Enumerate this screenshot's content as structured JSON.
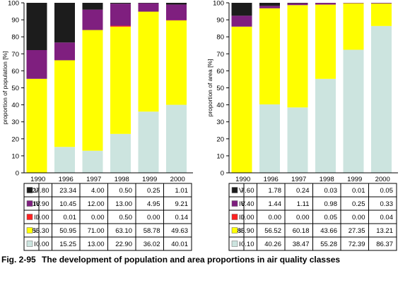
{
  "caption": {
    "number": "Fig. 2-95",
    "text": "The development of population and area proportions in air quality classes"
  },
  "colors": {
    "V": "#1c1c1c",
    "IV": "#7f1f7f",
    "III": "#ff2020",
    "II": "#ffff00",
    "I": "#cce4df"
  },
  "chart_data": [
    {
      "type": "bar",
      "stacked": true,
      "ylabel": "proportion of population [%]",
      "ylim": [
        0,
        100
      ],
      "yticks": [
        0,
        10,
        20,
        30,
        40,
        50,
        60,
        70,
        80,
        90,
        100
      ],
      "categories": [
        "1990",
        "1996",
        "1997",
        "1998",
        "1999",
        "2000"
      ],
      "series": [
        {
          "name": "V",
          "values": [
            27.8,
            23.34,
            4.0,
            0.5,
            0.25,
            1.01
          ],
          "labels": [
            "27.80",
            "23.34",
            "4.00",
            "0.50",
            "0.25",
            "1.01"
          ]
        },
        {
          "name": "IV",
          "values": [
            16.9,
            10.45,
            12.0,
            13.0,
            4.95,
            9.21
          ],
          "labels": [
            "16.90",
            "10.45",
            "12.00",
            "13.00",
            "4.95",
            "9.21"
          ]
        },
        {
          "name": "III",
          "values": [
            0.0,
            0.01,
            0.0,
            0.5,
            0.0,
            0.14
          ],
          "labels": [
            "0.00",
            "0.01",
            "0.00",
            "0.50",
            "0.00",
            "0.14"
          ]
        },
        {
          "name": "II",
          "values": [
            55.3,
            50.95,
            71.0,
            63.1,
            58.78,
            49.63
          ],
          "labels": [
            "55.30",
            "50.95",
            "71.00",
            "63.10",
            "58.78",
            "49.63"
          ]
        },
        {
          "name": "I",
          "values": [
            0.0,
            15.25,
            13.0,
            22.9,
            36.02,
            40.01
          ],
          "labels": [
            "0.00",
            "15.25",
            "13.00",
            "22.90",
            "36.02",
            "40.01"
          ]
        }
      ],
      "grid": false
    },
    {
      "type": "bar",
      "stacked": true,
      "ylabel": "proportion of area [%]",
      "ylim": [
        0,
        100
      ],
      "yticks": [
        0,
        10,
        20,
        30,
        40,
        50,
        60,
        70,
        80,
        90,
        100
      ],
      "categories": [
        "1990",
        "1996",
        "1997",
        "1998",
        "1999",
        "2000"
      ],
      "series": [
        {
          "name": "V",
          "values": [
            7.6,
            1.78,
            0.24,
            0.03,
            0.01,
            0.05
          ],
          "labels": [
            "7.60",
            "1.78",
            "0.24",
            "0.03",
            "0.01",
            "0.05"
          ]
        },
        {
          "name": "IV",
          "values": [
            6.4,
            1.44,
            1.11,
            0.98,
            0.25,
            0.33
          ],
          "labels": [
            "6.40",
            "1.44",
            "1.11",
            "0.98",
            "0.25",
            "0.33"
          ]
        },
        {
          "name": "III",
          "values": [
            0.0,
            0.0,
            0.0,
            0.05,
            0.0,
            0.04
          ],
          "labels": [
            "0.00",
            "0.00",
            "0.00",
            "0.05",
            "0.00",
            "0.04"
          ]
        },
        {
          "name": "II",
          "values": [
            85.9,
            56.52,
            60.18,
            43.66,
            27.35,
            13.21
          ],
          "labels": [
            "85.90",
            "56.52",
            "60.18",
            "43.66",
            "27.35",
            "13.21"
          ]
        },
        {
          "name": "I",
          "values": [
            0.1,
            40.26,
            38.47,
            55.28,
            72.39,
            86.37
          ],
          "labels": [
            "0.10",
            "40.26",
            "38.47",
            "55.28",
            "72.39",
            "86.37"
          ]
        }
      ],
      "grid": false
    }
  ]
}
